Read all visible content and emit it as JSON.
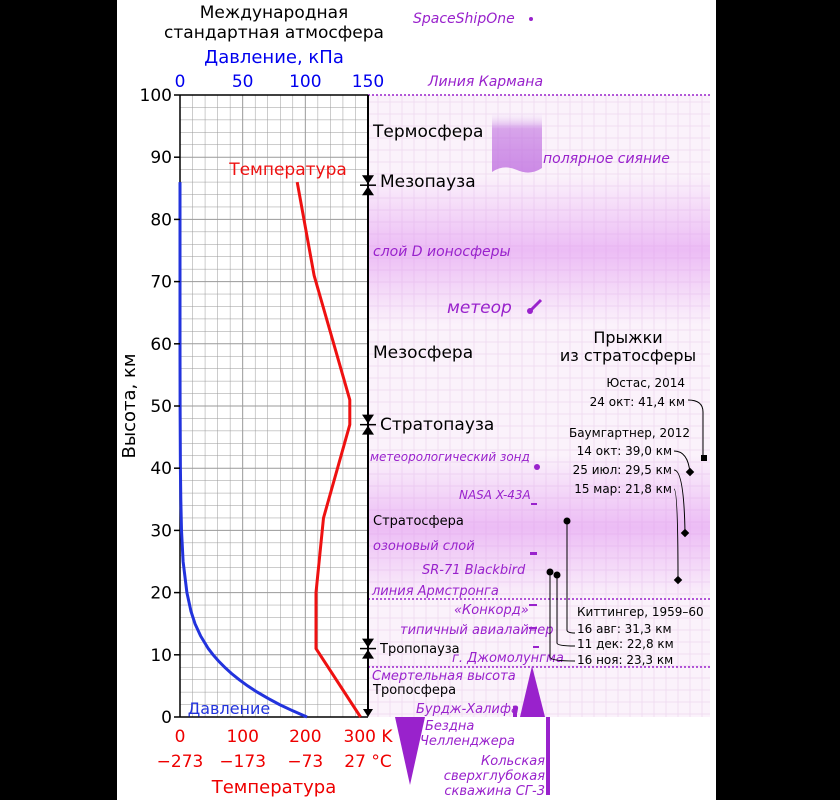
{
  "chart_data": {
    "type": "line",
    "title": [
      "Международная",
      "стандартная атмосфера"
    ],
    "top_axis": {
      "label": "Давление, кПа",
      "ticks": [
        "0",
        "50",
        "100",
        "150"
      ],
      "range": [
        0,
        150
      ],
      "color": "#0000ee"
    },
    "bottom_axis": {
      "label": "Температура",
      "ticks_k": [
        "0",
        "100",
        "200",
        "300 K"
      ],
      "ticks_c": [
        "−273",
        "−173",
        "−73",
        "27 °C"
      ],
      "range_k": [
        0,
        300
      ],
      "color": "#ee0000"
    },
    "y_axis": {
      "label": "Высота, км",
      "range": [
        0,
        100
      ],
      "ticks": [
        "0",
        "10",
        "20",
        "30",
        "40",
        "50",
        "60",
        "70",
        "80",
        "90",
        "100"
      ]
    },
    "grid": true,
    "series": [
      {
        "name": "Температура",
        "color": "#ee1111",
        "points": [
          [
            288,
            0
          ],
          [
            217,
            11
          ],
          [
            217,
            20
          ],
          [
            229,
            32
          ],
          [
            271,
            47
          ],
          [
            271,
            51
          ],
          [
            214,
            71
          ],
          [
            187,
            86
          ]
        ]
      },
      {
        "name": "Давление",
        "color": "#2233dd",
        "points": [
          [
            101.3,
            0
          ],
          [
            89.9,
            1
          ],
          [
            79.5,
            2
          ],
          [
            70.1,
            3
          ],
          [
            61.6,
            4
          ],
          [
            54.0,
            5
          ],
          [
            47.2,
            6
          ],
          [
            41.1,
            7
          ],
          [
            35.6,
            8
          ],
          [
            30.7,
            9
          ],
          [
            26.4,
            10
          ],
          [
            22.6,
            11
          ],
          [
            16.5,
            13
          ],
          [
            12.0,
            15
          ],
          [
            8.8,
            17
          ],
          [
            5.5,
            20
          ],
          [
            2.5,
            25
          ],
          [
            1.2,
            30
          ],
          [
            0.6,
            35
          ],
          [
            0.3,
            40
          ],
          [
            0.1,
            50
          ],
          [
            0.02,
            60
          ],
          [
            0.005,
            70
          ],
          [
            0.0,
            86
          ]
        ]
      }
    ],
    "layers": [
      {
        "name": "Термосфера",
        "alt": 94
      },
      {
        "name": "Мезосфера",
        "alt": 57
      },
      {
        "name": "Стратосфера",
        "alt": 30.5
      },
      {
        "name": "Тропосфера",
        "alt": 3
      }
    ],
    "boundaries": [
      {
        "name": "Мезопауза",
        "alt": 85.5
      },
      {
        "name": "Стратопауза",
        "alt": 47
      },
      {
        "name": "Тропопауза",
        "alt": 11
      }
    ],
    "annotations": [
      {
        "id": "spaceshipone",
        "text": "SpaceShipOne"
      },
      {
        "id": "karman",
        "text": "Линия Кармана"
      },
      {
        "id": "aurora",
        "text": "полярное сияние"
      },
      {
        "id": "d-layer",
        "text": "слой D ионосферы"
      },
      {
        "id": "meteor",
        "text": "метеор"
      },
      {
        "id": "balloon",
        "text": "метеорологический зонд"
      },
      {
        "id": "x43",
        "text": "NASA X-43A"
      },
      {
        "id": "ozone",
        "text": "озоновый слой"
      },
      {
        "id": "sr71",
        "text": "SR-71 Blackbird"
      },
      {
        "id": "armstrong",
        "text": "линия Армстронга"
      },
      {
        "id": "concorde",
        "text": "«Конкорд»"
      },
      {
        "id": "airliner",
        "text": "типичный авиалайнер"
      },
      {
        "id": "everest",
        "text": "г. Джомолунгма"
      },
      {
        "id": "death-zone",
        "text": "Смертельная высота"
      },
      {
        "id": "burj",
        "text": "Бурдж-Халифа"
      },
      {
        "id": "challenger",
        "text": [
          "Бездна",
          "Челленджера"
        ]
      },
      {
        "id": "kola",
        "text": [
          "Кольская",
          "сверхглубокая",
          "скважина СГ-3"
        ]
      }
    ],
    "jumps": {
      "title": [
        "Прыжки",
        "из стратосферы"
      ],
      "entries": [
        [
          "Юстас, 2014",
          "24 окт: 41,4 км"
        ],
        [
          "Баумгартнер, 2012",
          "14 окт: 39,0 км",
          "25 июл: 29,5 км",
          "15 мар: 21,8 км"
        ],
        [
          "Киттингер, 1959–60",
          "16 авг: 31,3 км",
          "11 дек: 22,8 км",
          "16 ноя: 23,3 км"
        ]
      ]
    },
    "colors": {
      "annotation": "#9922cc",
      "grid": "#9a9a9a",
      "axis": "#000000"
    }
  }
}
